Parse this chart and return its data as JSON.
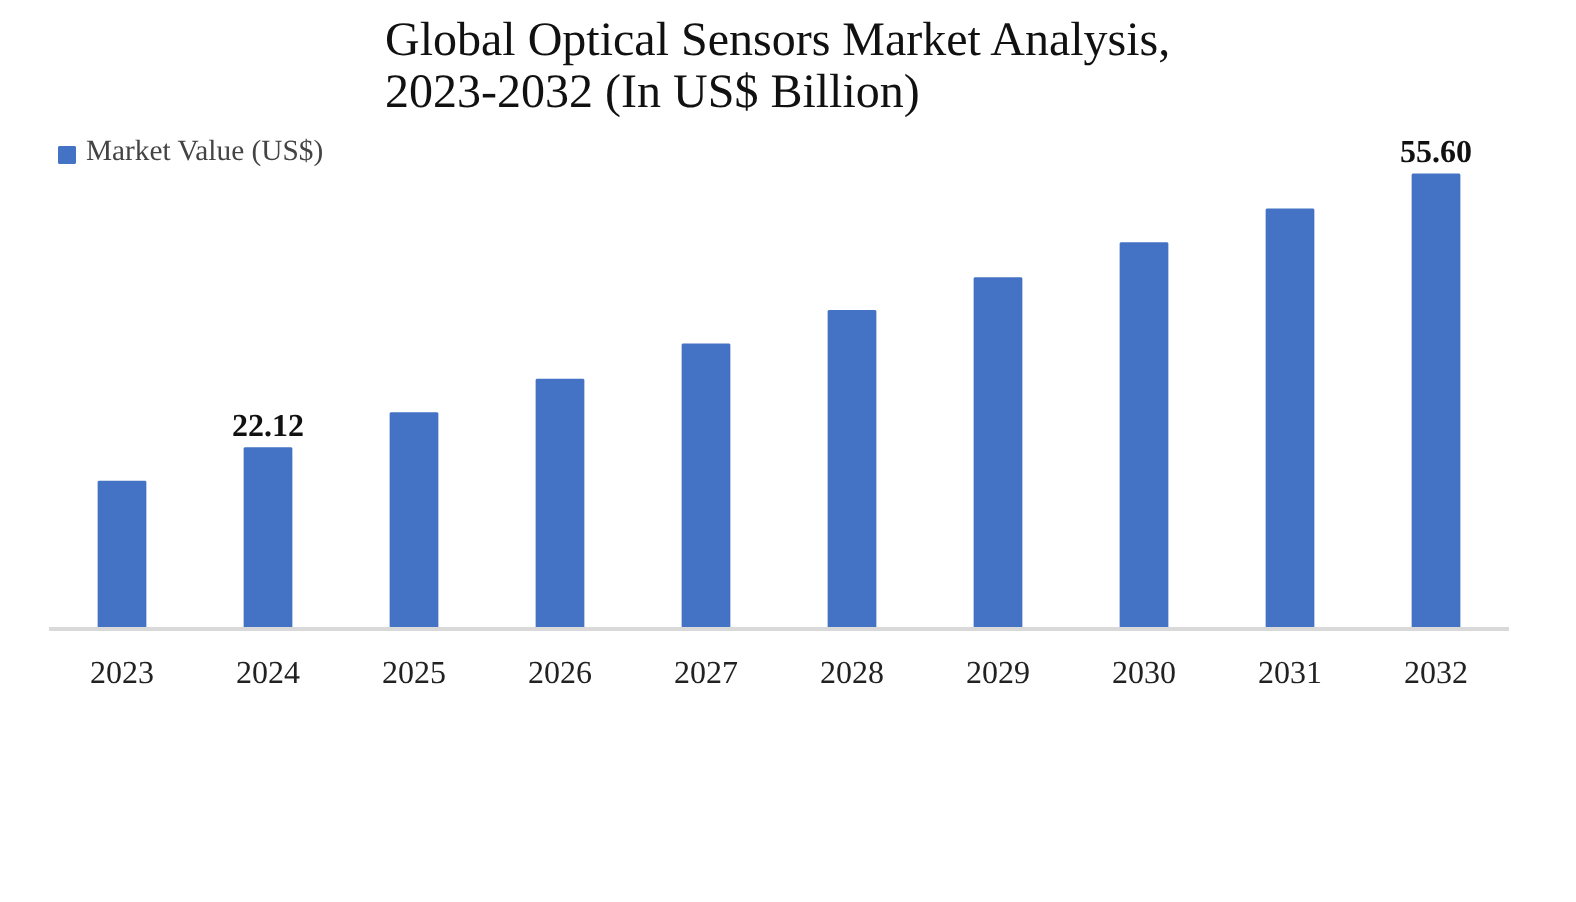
{
  "chart_data": {
    "type": "bar",
    "title": "Global Optical Sensors Market Analysis, 2023-2032 (In US$ Billion)",
    "categories": [
      "2023",
      "2024",
      "2025",
      "2026",
      "2027",
      "2028",
      "2029",
      "2030",
      "2031",
      "2032"
    ],
    "series": [
      {
        "name": "Market Value (US$)",
        "color": "#4472c4",
        "values": [
          18.0,
          22.12,
          26.4,
          30.5,
          34.8,
          38.9,
          42.9,
          47.2,
          51.3,
          55.6
        ],
        "value_labels": [
          null,
          "22.12",
          null,
          null,
          null,
          null,
          null,
          null,
          null,
          "55.60"
        ]
      }
    ],
    "legend": "top left"
  }
}
